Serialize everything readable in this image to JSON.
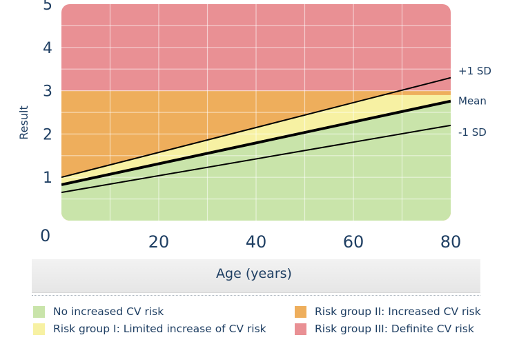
{
  "chart_data": {
    "type": "area",
    "xlabel": "Age (years)",
    "ylabel": "Result",
    "xlim": [
      0,
      80
    ],
    "ylim": [
      0,
      5
    ],
    "x_ticks": [
      "20",
      "40",
      "60",
      "80"
    ],
    "y_ticks": [
      "0",
      "1",
      "2",
      "3",
      "4",
      "5"
    ],
    "grid": true,
    "thresholds": {
      "mean_cap": 2.9,
      "group_iii_lower": 3.0
    },
    "series": [
      {
        "name": "+1 SD",
        "x": [
          0,
          80
        ],
        "y": [
          1.0,
          3.3
        ],
        "line": "thin"
      },
      {
        "name": "Mean",
        "x": [
          0,
          80
        ],
        "y": [
          0.83,
          2.76
        ],
        "line": "thick"
      },
      {
        "name": "-1 SD",
        "x": [
          0,
          80
        ],
        "y": [
          0.65,
          2.2
        ],
        "line": "thin"
      }
    ],
    "zones": [
      {
        "name": "No increased CV risk",
        "color": "#c9e4aa"
      },
      {
        "name": "Risk group I: Limited increase of CV risk",
        "color": "#f7f1a3"
      },
      {
        "name": "Risk group II: Increased CV risk",
        "color": "#eeae5c"
      },
      {
        "name": "Risk group III: Definite CV risk",
        "color": "#e99094"
      }
    ]
  },
  "legend": [
    {
      "label": "No increased CV risk",
      "color": "#c9e4aa"
    },
    {
      "label": "Risk group I: Limited increase of CV risk",
      "color": "#f7f1a3"
    },
    {
      "label": "Risk group II: Increased CV risk",
      "color": "#eeae5c"
    },
    {
      "label": "Risk group III: Definite CV risk",
      "color": "#e99094"
    }
  ]
}
